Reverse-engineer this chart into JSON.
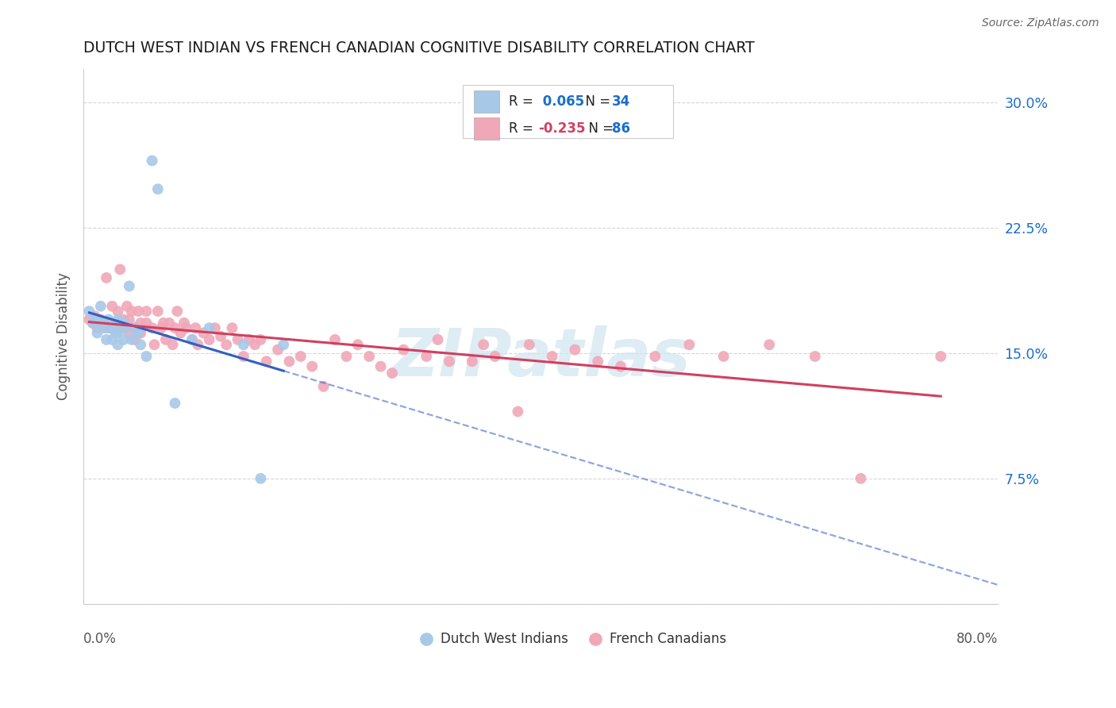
{
  "title": "DUTCH WEST INDIAN VS FRENCH CANADIAN COGNITIVE DISABILITY CORRELATION CHART",
  "source": "Source: ZipAtlas.com",
  "ylabel": "Cognitive Disability",
  "ytick_values": [
    0.0,
    0.075,
    0.15,
    0.225,
    0.3
  ],
  "ytick_labels": [
    "",
    "7.5%",
    "15.0%",
    "22.5%",
    "30.0%"
  ],
  "xlim": [
    0.0,
    0.8
  ],
  "ylim": [
    0.0,
    0.32
  ],
  "R_blue": 0.065,
  "N_blue": 34,
  "R_pink": -0.235,
  "N_pink": 86,
  "blue_scatter_color": "#a8c8e8",
  "pink_scatter_color": "#f0a8b8",
  "blue_line_color": "#3060c0",
  "pink_line_color": "#d04060",
  "watermark_color": "#d0e4f0",
  "watermark_text": "ZIPatlas",
  "blue_x": [
    0.005,
    0.008,
    0.01,
    0.012,
    0.015,
    0.015,
    0.018,
    0.02,
    0.02,
    0.022,
    0.025,
    0.025,
    0.028,
    0.03,
    0.03,
    0.03,
    0.032,
    0.035,
    0.035,
    0.038,
    0.04,
    0.042,
    0.045,
    0.048,
    0.05,
    0.055,
    0.06,
    0.065,
    0.08,
    0.095,
    0.11,
    0.14,
    0.155,
    0.175
  ],
  "blue_y": [
    0.175,
    0.168,
    0.17,
    0.162,
    0.168,
    0.178,
    0.165,
    0.158,
    0.165,
    0.17,
    0.158,
    0.165,
    0.162,
    0.155,
    0.162,
    0.17,
    0.165,
    0.158,
    0.168,
    0.165,
    0.19,
    0.158,
    0.165,
    0.162,
    0.155,
    0.148,
    0.265,
    0.248,
    0.12,
    0.158,
    0.165,
    0.155,
    0.075,
    0.155
  ],
  "pink_x": [
    0.005,
    0.008,
    0.01,
    0.012,
    0.015,
    0.018,
    0.02,
    0.022,
    0.025,
    0.025,
    0.028,
    0.03,
    0.03,
    0.032,
    0.035,
    0.035,
    0.038,
    0.04,
    0.04,
    0.042,
    0.045,
    0.045,
    0.048,
    0.05,
    0.05,
    0.055,
    0.055,
    0.06,
    0.062,
    0.065,
    0.068,
    0.07,
    0.072,
    0.075,
    0.078,
    0.08,
    0.082,
    0.085,
    0.088,
    0.09,
    0.095,
    0.098,
    0.1,
    0.105,
    0.11,
    0.115,
    0.12,
    0.125,
    0.13,
    0.135,
    0.14,
    0.145,
    0.15,
    0.155,
    0.16,
    0.17,
    0.18,
    0.19,
    0.2,
    0.21,
    0.22,
    0.23,
    0.24,
    0.25,
    0.26,
    0.27,
    0.28,
    0.3,
    0.31,
    0.32,
    0.34,
    0.35,
    0.36,
    0.38,
    0.39,
    0.41,
    0.43,
    0.45,
    0.47,
    0.5,
    0.53,
    0.56,
    0.6,
    0.64,
    0.68,
    0.75
  ],
  "pink_y": [
    0.17,
    0.168,
    0.172,
    0.165,
    0.17,
    0.168,
    0.195,
    0.165,
    0.165,
    0.178,
    0.168,
    0.175,
    0.168,
    0.2,
    0.17,
    0.165,
    0.178,
    0.17,
    0.162,
    0.175,
    0.165,
    0.158,
    0.175,
    0.168,
    0.162,
    0.175,
    0.168,
    0.165,
    0.155,
    0.175,
    0.165,
    0.168,
    0.158,
    0.168,
    0.155,
    0.165,
    0.175,
    0.162,
    0.168,
    0.165,
    0.158,
    0.165,
    0.155,
    0.162,
    0.158,
    0.165,
    0.16,
    0.155,
    0.165,
    0.158,
    0.148,
    0.158,
    0.155,
    0.158,
    0.145,
    0.152,
    0.145,
    0.148,
    0.142,
    0.13,
    0.158,
    0.148,
    0.155,
    0.148,
    0.142,
    0.138,
    0.152,
    0.148,
    0.158,
    0.145,
    0.145,
    0.155,
    0.148,
    0.115,
    0.155,
    0.148,
    0.152,
    0.145,
    0.142,
    0.148,
    0.155,
    0.148,
    0.155,
    0.148,
    0.075,
    0.148
  ]
}
